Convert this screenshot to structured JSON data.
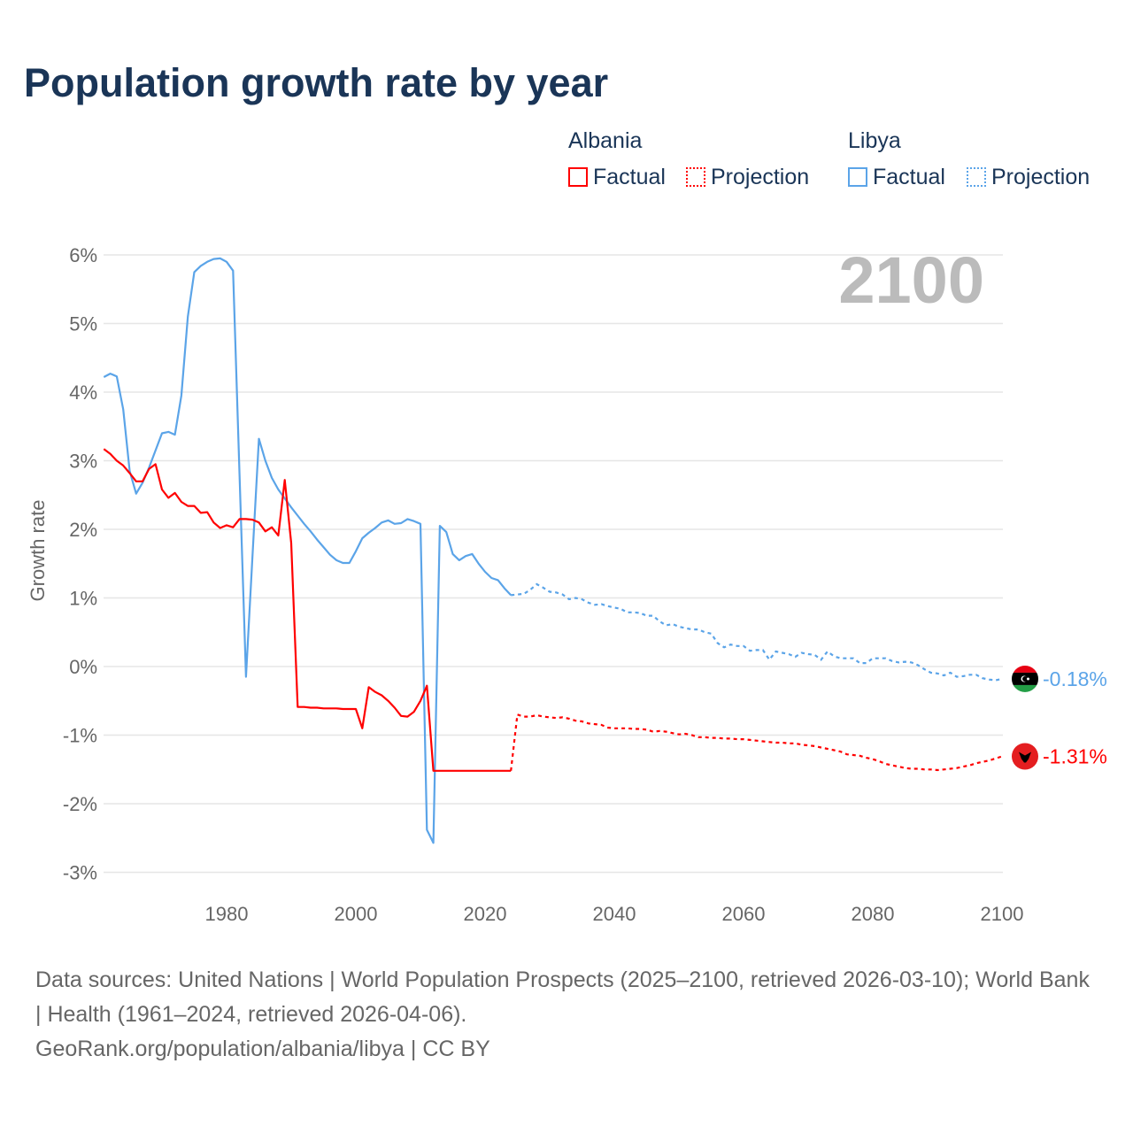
{
  "title": "Population growth rate by year",
  "legend": {
    "groups": [
      {
        "name": "Albania",
        "factual": "Factual",
        "projection": "Projection",
        "color": "#ff0000"
      },
      {
        "name": "Libya",
        "factual": "Factual",
        "projection": "Projection",
        "color": "#5ba4e8"
      }
    ]
  },
  "year_label": "2100",
  "footer": {
    "sources": "Data sources: United Nations | World Population Prospects (2025–2100, retrieved 2026-03-10); World Bank | Health (1961–2024, retrieved 2026-04-06).",
    "credit": "GeoRank.org/population/albania/libya | CC BY"
  },
  "chart_data": {
    "type": "line",
    "title": "Population growth rate by year",
    "xlabel": "",
    "ylabel": "Growth rate",
    "xlim": [
      1961,
      2100
    ],
    "ylim": [
      -3,
      6
    ],
    "x_ticks": [
      1980,
      2000,
      2020,
      2040,
      2060,
      2080,
      2100
    ],
    "y_ticks": [
      {
        "v": 6,
        "label": "6%"
      },
      {
        "v": 5,
        "label": "5%"
      },
      {
        "v": 4,
        "label": "4%"
      },
      {
        "v": 3,
        "label": "3%"
      },
      {
        "v": 2,
        "label": "2%"
      },
      {
        "v": 1,
        "label": "1%"
      },
      {
        "v": 0,
        "label": "0%"
      },
      {
        "v": -1,
        "label": "-1%"
      },
      {
        "v": -2,
        "label": "-2%"
      },
      {
        "v": -3,
        "label": "-3%"
      }
    ],
    "grid": true,
    "series": [
      {
        "name": "Libya",
        "color": "#5ba4e8",
        "end_label": "-0.18%",
        "factual": {
          "start_year": 1961,
          "values": [
            4.22,
            4.27,
            4.23,
            3.75,
            2.85,
            2.52,
            2.68,
            2.9,
            3.15,
            3.4,
            3.42,
            3.38,
            3.95,
            5.1,
            5.75,
            5.84,
            5.9,
            5.94,
            5.95,
            5.9,
            5.77,
            2.8,
            -0.15,
            1.6,
            3.32,
            3.0,
            2.75,
            2.58,
            2.45,
            2.32,
            2.2,
            2.08,
            1.97,
            1.85,
            1.74,
            1.63,
            1.55,
            1.51,
            1.51,
            1.68,
            1.87,
            1.95,
            2.02,
            2.1,
            2.13,
            2.08,
            2.09,
            2.15,
            2.12,
            2.08,
            -2.38,
            -2.57,
            2.05,
            1.96,
            1.64,
            1.55,
            1.61,
            1.64,
            1.5,
            1.38,
            1.29,
            1.26,
            1.14,
            1.04
          ]
        },
        "projection": {
          "start_year": 2024,
          "values": [
            1.04,
            1.05,
            1.06,
            1.12,
            1.2,
            1.15,
            1.09,
            1.08,
            1.05,
            0.98,
            1.0,
            0.98,
            0.93,
            0.9,
            0.91,
            0.88,
            0.86,
            0.84,
            0.79,
            0.79,
            0.78,
            0.74,
            0.74,
            0.66,
            0.6,
            0.62,
            0.58,
            0.56,
            0.54,
            0.54,
            0.5,
            0.48,
            0.34,
            0.28,
            0.32,
            0.3,
            0.3,
            0.23,
            0.24,
            0.24,
            0.1,
            0.22,
            0.2,
            0.18,
            0.14,
            0.2,
            0.18,
            0.17,
            0.1,
            0.22,
            0.15,
            0.12,
            0.12,
            0.12,
            0.05,
            0.05,
            0.12,
            0.12,
            0.12,
            0.08,
            0.06,
            0.07,
            0.06,
            0.02,
            -0.04,
            -0.09,
            -0.1,
            -0.13,
            -0.09,
            -0.15,
            -0.14,
            -0.12,
            -0.12,
            -0.17,
            -0.19,
            -0.2,
            -0.18
          ]
        }
      },
      {
        "name": "Albania",
        "color": "#ff0000",
        "end_label": "-1.31%",
        "factual": {
          "start_year": 1961,
          "values": [
            3.17,
            3.1,
            3.0,
            2.93,
            2.82,
            2.7,
            2.7,
            2.88,
            2.95,
            2.58,
            2.46,
            2.53,
            2.4,
            2.34,
            2.34,
            2.24,
            2.25,
            2.1,
            2.02,
            2.06,
            2.03,
            2.15,
            2.15,
            2.14,
            2.1,
            1.97,
            2.03,
            1.91,
            2.72,
            1.8,
            -0.59,
            -0.59,
            -0.6,
            -0.6,
            -0.61,
            -0.61,
            -0.61,
            -0.62,
            -0.62,
            -0.62,
            -0.9,
            -0.3,
            -0.37,
            -0.42,
            -0.5,
            -0.6,
            -0.72,
            -0.73,
            -0.66,
            -0.5,
            -0.28,
            -1.52,
            -1.52,
            -1.52,
            -1.52,
            -1.52,
            -1.52,
            -1.52,
            -1.52,
            -1.52,
            -1.52,
            -1.52,
            -1.52,
            -1.52
          ]
        },
        "projection": {
          "start_year": 2024,
          "values": [
            -1.52,
            -0.7,
            -0.73,
            -0.73,
            -0.71,
            -0.73,
            -0.74,
            -0.75,
            -0.74,
            -0.76,
            -0.79,
            -0.8,
            -0.83,
            -0.84,
            -0.85,
            -0.89,
            -0.9,
            -0.9,
            -0.9,
            -0.91,
            -0.91,
            -0.92,
            -0.95,
            -0.94,
            -0.95,
            -0.97,
            -0.99,
            -0.98,
            -1.0,
            -1.03,
            -1.03,
            -1.04,
            -1.04,
            -1.05,
            -1.05,
            -1.06,
            -1.06,
            -1.07,
            -1.08,
            -1.09,
            -1.1,
            -1.11,
            -1.11,
            -1.12,
            -1.12,
            -1.14,
            -1.15,
            -1.16,
            -1.18,
            -1.2,
            -1.22,
            -1.24,
            -1.28,
            -1.29,
            -1.3,
            -1.33,
            -1.35,
            -1.38,
            -1.42,
            -1.44,
            -1.46,
            -1.48,
            -1.49,
            -1.49,
            -1.5,
            -1.5,
            -1.51,
            -1.5,
            -1.49,
            -1.48,
            -1.46,
            -1.44,
            -1.41,
            -1.39,
            -1.37,
            -1.34,
            -1.31
          ]
        }
      }
    ]
  }
}
